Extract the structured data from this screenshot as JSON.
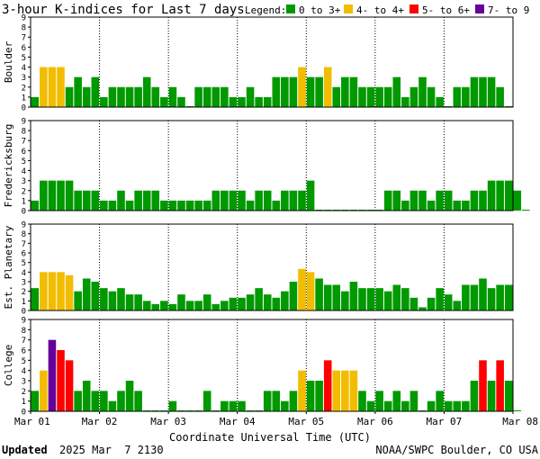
{
  "chart_data": {
    "type": "bar",
    "title": "3-hour K-indices for Last 7 days",
    "legend": {
      "label": "Legend:",
      "placement": "top-right",
      "entries": [
        {
          "label": "0 to 3+",
          "color": "#009900"
        },
        {
          "label": "4- to 4+",
          "color": "#f2bd00"
        },
        {
          "label": "5- to 6+",
          "color": "#ff0000"
        },
        {
          "label": "7- to 9",
          "color": "#660099"
        }
      ]
    },
    "xlabel": "Coordinate Universal Time (UTC)",
    "x_ticks": [
      "Mar 01",
      "Mar 02",
      "Mar 03",
      "Mar 04",
      "Mar 05",
      "Mar 06",
      "Mar 07",
      "Mar 08"
    ],
    "ylim": [
      0,
      9
    ],
    "y_ticks": [
      0,
      1,
      2,
      3,
      4,
      5,
      6,
      7,
      8,
      9
    ],
    "intervals_per_day": 8,
    "days": 7,
    "panels": [
      {
        "name": "Boulder",
        "values": [
          1,
          4,
          4,
          4,
          2,
          3,
          2,
          3,
          1,
          2,
          2,
          2,
          2,
          3,
          2,
          1,
          2,
          1,
          0,
          2,
          2,
          2,
          2,
          1,
          1,
          2,
          1,
          1,
          3,
          3,
          3,
          4,
          3,
          3,
          4,
          2,
          3,
          3,
          2,
          2,
          2,
          2,
          3,
          1,
          2,
          3,
          2,
          1,
          0,
          2,
          2,
          3,
          3,
          3,
          2,
          0
        ]
      },
      {
        "name": "Fredericksburg",
        "values": [
          1,
          3,
          3,
          3,
          3,
          2,
          2,
          2,
          1,
          1,
          2,
          1,
          2,
          2,
          2,
          1,
          1,
          1,
          1,
          1,
          1,
          2,
          2,
          2,
          2,
          1,
          2,
          2,
          1,
          2,
          2,
          2,
          3,
          0,
          0,
          0,
          0,
          0,
          0,
          0,
          0,
          2,
          2,
          1,
          2,
          2,
          1,
          2,
          2,
          1,
          1,
          2,
          2,
          3,
          3,
          3,
          2,
          0
        ]
      },
      {
        "name": "Est. Planetary",
        "values": [
          2.33,
          4,
          4,
          4,
          3.67,
          2,
          3.33,
          3,
          2.33,
          2,
          2.33,
          1.67,
          1.67,
          1,
          0.67,
          1,
          0.67,
          1.67,
          1,
          1,
          1.67,
          0.67,
          1,
          1.33,
          1.33,
          1.67,
          2.33,
          1.67,
          1.33,
          2,
          3,
          4.33,
          4,
          3.33,
          2.67,
          2.67,
          2,
          3,
          2.33,
          2.33,
          2.33,
          2,
          2.67,
          2.33,
          1.33,
          0.33,
          1.33,
          2.33,
          1.67,
          1,
          2.67,
          2.67,
          3.33,
          2.33,
          2.67,
          2.67
        ]
      },
      {
        "name": "College",
        "values": [
          2,
          4,
          7,
          6,
          5,
          2,
          3,
          2,
          2,
          1,
          2,
          3,
          2,
          0,
          0,
          0,
          1,
          0,
          0,
          0,
          2,
          0,
          1,
          1,
          1,
          0,
          0,
          2,
          2,
          1,
          2,
          4,
          3,
          3,
          5,
          4,
          4,
          4,
          2,
          1,
          2,
          1,
          2,
          1,
          2,
          0,
          1,
          2,
          1,
          1,
          1,
          3,
          5,
          3,
          5,
          3,
          0
        ]
      }
    ]
  },
  "footer": {
    "updated_label": "Updated",
    "updated_value": "2025 Mar  7 2130",
    "credit": "NOAA/SWPC Boulder, CO USA"
  }
}
